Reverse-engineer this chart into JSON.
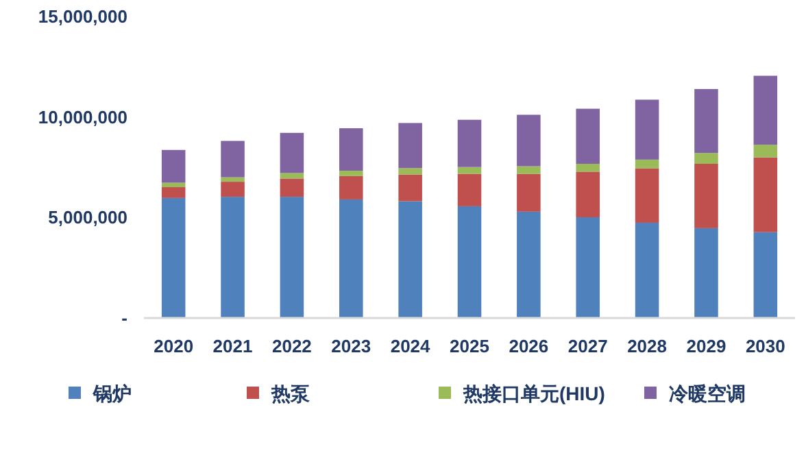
{
  "chart_data": {
    "type": "bar",
    "stacked": true,
    "categories": [
      "2020",
      "2021",
      "2022",
      "2023",
      "2024",
      "2025",
      "2026",
      "2027",
      "2028",
      "2029",
      "2030"
    ],
    "series": [
      {
        "name": "锅炉",
        "color": "#4f81bd",
        "values": [
          5970000,
          6030000,
          6030000,
          5900000,
          5810000,
          5560000,
          5290000,
          5010000,
          4740000,
          4470000,
          4270000
        ]
      },
      {
        "name": "热泵",
        "color": "#c0504d",
        "values": [
          540000,
          750000,
          910000,
          1160000,
          1330000,
          1610000,
          1880000,
          2270000,
          2710000,
          3200000,
          3720000
        ]
      },
      {
        "name": "热接口单元(HIU)",
        "color": "#9bbb59",
        "values": [
          220000,
          220000,
          270000,
          270000,
          320000,
          340000,
          380000,
          390000,
          430000,
          540000,
          630000
        ]
      },
      {
        "name": "冷暖空调",
        "color": "#8064a2",
        "values": [
          1630000,
          1810000,
          2000000,
          2110000,
          2240000,
          2350000,
          2560000,
          2740000,
          2980000,
          3180000,
          3430000
        ]
      }
    ],
    "ylim": [
      0,
      15000000
    ],
    "yticks": [
      {
        "value": 0,
        "label": "-"
      },
      {
        "value": 5000000,
        "label": "5,000,000"
      },
      {
        "value": 10000000,
        "label": "10,000,000"
      },
      {
        "value": 15000000,
        "label": "15,000,000"
      }
    ],
    "grid": false,
    "legend": "bottom"
  }
}
